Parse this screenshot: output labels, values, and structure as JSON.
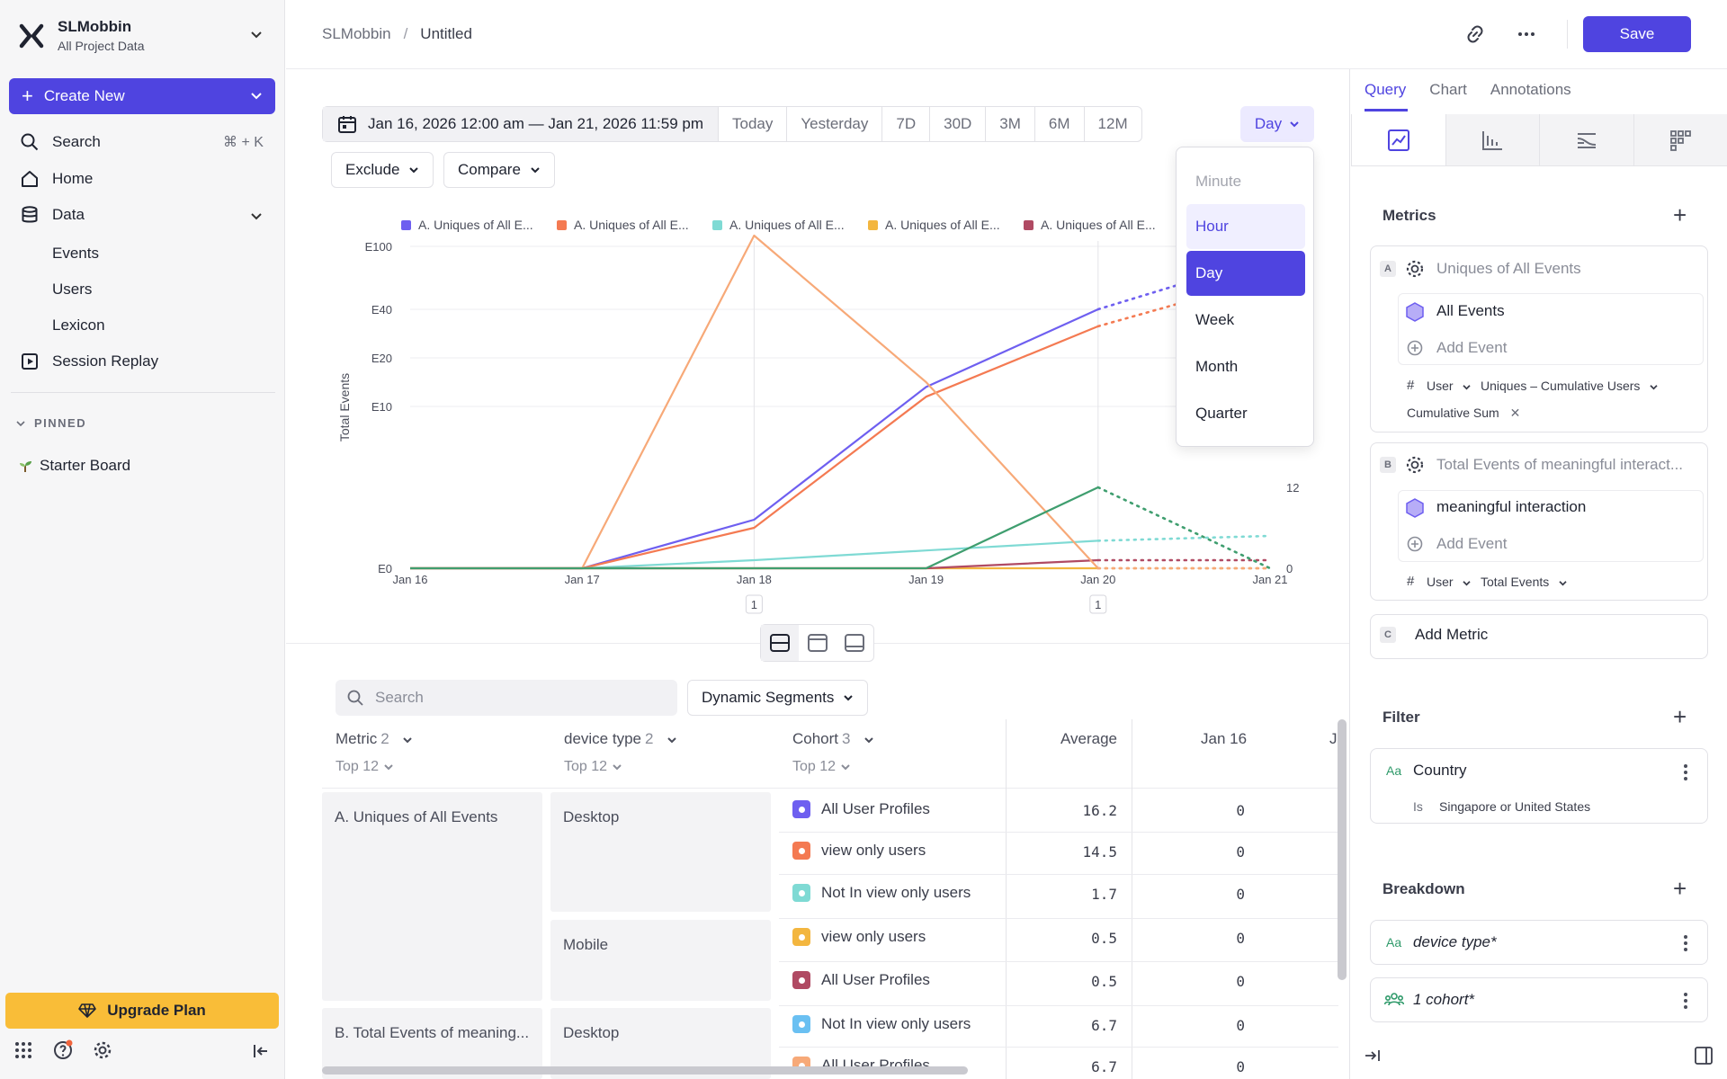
{
  "org": {
    "name": "SLMobbin",
    "subtitle": "All Project Data"
  },
  "sidebar": {
    "create_label": "Create New",
    "search_label": "Search",
    "search_shortcut": "⌘ + K",
    "home_label": "Home",
    "data_label": "Data",
    "data_items": [
      "Events",
      "Users",
      "Lexicon"
    ],
    "session_replay_label": "Session Replay",
    "pinned_label": "PINNED",
    "pinned_items": [
      "Starter Board"
    ],
    "upgrade_label": "Upgrade Plan"
  },
  "header": {
    "breadcrumb_root": "SLMobbin",
    "breadcrumb_separator": "/",
    "breadcrumb_current": "Untitled",
    "save_label": "Save"
  },
  "date_range": {
    "label": "Jan 16, 2026 12:00 am — Jan 21, 2026 11:59 pm",
    "presets": [
      "Today",
      "Yesterday",
      "7D",
      "30D",
      "3M",
      "6M",
      "12M"
    ]
  },
  "granularity": {
    "current": "Day",
    "options": [
      "Minute",
      "Hour",
      "Day",
      "Week",
      "Month",
      "Quarter"
    ]
  },
  "filters_bar": {
    "exclude_label": "Exclude",
    "compare_label": "Compare"
  },
  "chart_data": {
    "type": "line",
    "ylabel": "Total Events",
    "x": [
      "Jan 16",
      "Jan 17",
      "Jan 18",
      "Jan 19",
      "Jan 20",
      "Jan 21"
    ],
    "y_ticks_left": [
      "E100",
      "E40",
      "E20",
      "E10",
      "E0"
    ],
    "y_ticks_right": [
      "12",
      "0"
    ],
    "x_markers": [
      "1",
      "1"
    ],
    "series": [
      {
        "name": "A. Uniques of All E...",
        "color": "#6e5ff0",
        "values": [
          0,
          0,
          3,
          14,
          40,
          90
        ]
      },
      {
        "name": "A. Uniques of All E...",
        "color": "#f47a52",
        "values": [
          0,
          0,
          2.5,
          12,
          33,
          70
        ]
      },
      {
        "name": "A. Uniques of All E...",
        "color": "#7fdad4",
        "values": [
          0,
          0,
          0.5,
          1.1,
          1.7,
          2
        ]
      },
      {
        "name": "A. Uniques of All E...",
        "color": "#f3b63f",
        "values": [
          0,
          0,
          0,
          0,
          0,
          0
        ]
      },
      {
        "name": "A. Uniques of All E...",
        "color": "#b04a63",
        "values": [
          0,
          0,
          0,
          0,
          0.5,
          0.5
        ]
      },
      {
        "name": "",
        "color": "#f7a978",
        "values": [
          0,
          0,
          120,
          15,
          0,
          0
        ]
      },
      {
        "name": "",
        "color": "#3f9e6f",
        "values": [
          0,
          0,
          0,
          0,
          5,
          0
        ]
      }
    ],
    "grid": true,
    "legend_position": "top"
  },
  "table": {
    "search_placeholder": "Search",
    "dynamic_segments_label": "Dynamic Segments",
    "columns": [
      {
        "label": "Metric",
        "count": "2",
        "sub": "Top 12"
      },
      {
        "label": "device type",
        "count": "2",
        "sub": "Top 12"
      },
      {
        "label": "Cohort",
        "count": "3",
        "sub": "Top 12"
      },
      {
        "label": "Average"
      },
      {
        "label": "Jan 16"
      },
      {
        "label": "Ja"
      }
    ],
    "metrics": [
      "A. Uniques of All Events",
      "B. Total Events of meaning..."
    ],
    "devices": [
      "Desktop",
      "Mobile",
      "Desktop"
    ],
    "rows": [
      {
        "cohort": "All User Profiles",
        "color": "#6e5ff0",
        "average": "16.2",
        "jan16": "0"
      },
      {
        "cohort": "view only users",
        "color": "#f47a52",
        "average": "14.5",
        "jan16": "0"
      },
      {
        "cohort": "Not In view only users",
        "color": "#7fdad4",
        "average": "1.7",
        "jan16": "0"
      },
      {
        "cohort": "view only users",
        "color": "#f3b63f",
        "average": "0.5",
        "jan16": "0"
      },
      {
        "cohort": "All User Profiles",
        "color": "#b04a63",
        "average": "0.5",
        "jan16": "0"
      },
      {
        "cohort": "Not In view only users",
        "color": "#6ac0f2",
        "average": "6.7",
        "jan16": "0"
      },
      {
        "cohort": "All User Profiles",
        "color": "#f7a978",
        "average": "6.7",
        "jan16": "0"
      }
    ]
  },
  "right_panel": {
    "tabs": [
      "Query",
      "Chart",
      "Annotations"
    ],
    "metrics_title": "Metrics",
    "metric_a": {
      "badge": "A",
      "title": "Uniques of All Events",
      "event": "All Events",
      "add_event": "Add Event",
      "hash": "#",
      "entity": "User",
      "measure": "Uniques – Cumulative Users",
      "modifier": "Cumulative Sum"
    },
    "metric_b": {
      "badge": "B",
      "title": "Total Events of meaningful interact...",
      "event": "meaningful interaction",
      "add_event": "Add Event",
      "hash": "#",
      "entity": "User",
      "measure": "Total Events"
    },
    "add_metric": {
      "badge": "C",
      "label": "Add Metric"
    },
    "filter_title": "Filter",
    "filter": {
      "type": "Aa",
      "property": "Country",
      "operator": "Is",
      "value": "Singapore or United States"
    },
    "breakdown_title": "Breakdown",
    "breakdowns": [
      {
        "type": "Aa",
        "label": "device type*"
      },
      {
        "label": "1 cohort*"
      }
    ]
  }
}
